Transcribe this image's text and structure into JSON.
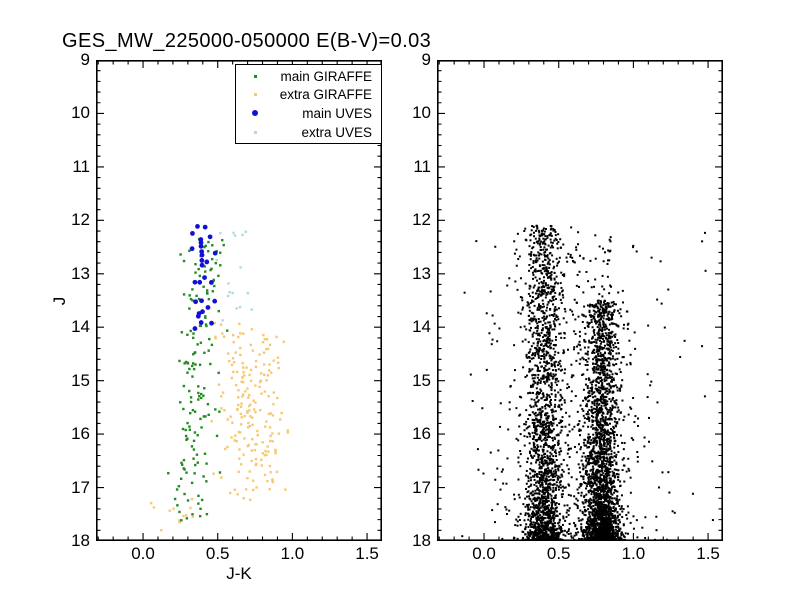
{
  "title": "GES_MW_225000-050000 E(B-V)=0.03",
  "axes": {
    "y_tick_labels": [
      "9",
      "10",
      "11",
      "12",
      "13",
      "14",
      "15",
      "16",
      "17",
      "18"
    ],
    "x_tick_labels": [
      "0.0",
      "0.5",
      "1.0",
      "1.5"
    ]
  },
  "colors": {
    "main_giraffe": "#228b22",
    "extra_giraffe": "#f7c873",
    "main_uves": "#1111d6",
    "extra_uves": "#aadce6",
    "field": "#000000",
    "frame": "#000000"
  },
  "chart_data": [
    {
      "type": "scatter",
      "panel": "left",
      "xlabel": "J-K",
      "ylabel": "J",
      "xlim": [
        -0.315,
        1.6
      ],
      "ylim": [
        18,
        9
      ],
      "y_inverted": true,
      "xticks": [
        0.0,
        0.5,
        1.0,
        1.5
      ],
      "yticks": [
        9,
        10,
        11,
        12,
        13,
        14,
        15,
        16,
        17,
        18
      ],
      "minor_tick_step_x": 0.1,
      "minor_tick_step_y": 0.2,
      "grid": false,
      "legend": {
        "position": "upper right",
        "entries": [
          "main GIRAFFE",
          "extra GIRAFFE",
          "main UVES",
          "extra UVES"
        ]
      },
      "series": [
        {
          "name": "extra GIRAFFE",
          "color": "#f7c873",
          "marker": "square",
          "size": 2.4,
          "clusters": [
            {
              "seed": 11,
              "count": 185,
              "x": {
                "dist": "normal",
                "mu": 0.74,
                "sigma": 0.105,
                "min": 0.44,
                "max": 0.97
              },
              "y": {
                "dist": "normal",
                "mu": 15.6,
                "sigma": 0.95,
                "min": 13.85,
                "max": 17.25
              }
            },
            {
              "seed": 12,
              "count": 12,
              "x": {
                "dist": "uniform",
                "min": 0.05,
                "max": 0.35
              },
              "y": {
                "dist": "uniform",
                "min": 17.2,
                "max": 17.8
              }
            },
            {
              "seed": 13,
              "count": 8,
              "x": {
                "dist": "normal",
                "mu": 0.56,
                "sigma": 0.06,
                "min": 0.46,
                "max": 0.7
              },
              "y": {
                "dist": "uniform",
                "min": 13.9,
                "max": 14.4
              }
            }
          ]
        },
        {
          "name": "main GIRAFFE",
          "color": "#228b22",
          "marker": "square",
          "size": 2.4,
          "clusters": [
            {
              "seed": 21,
              "count": 142,
              "slope": -0.015,
              "x": {
                "dist": "normal",
                "mu": 0.365,
                "sigma": 0.07,
                "min": 0.13,
                "max": 0.6
              },
              "y": {
                "dist": "uniform",
                "min": 12.45,
                "max": 17.65
              }
            },
            {
              "seed": 22,
              "count": 12,
              "x": {
                "dist": "normal",
                "mu": 0.46,
                "sigma": 0.05,
                "min": 0.36,
                "max": 0.58
              },
              "y": {
                "dist": "uniform",
                "min": 12.35,
                "max": 13.6
              }
            }
          ]
        },
        {
          "name": "extra UVES",
          "color": "#aadce6",
          "marker": "square",
          "size": 2.4,
          "clusters": [
            {
              "seed": 31,
              "count": 16,
              "x": {
                "dist": "normal",
                "mu": 0.6,
                "sigma": 0.11,
                "min": 0.4,
                "max": 0.8
              },
              "y": {
                "dist": "uniform",
                "min": 12.15,
                "max": 13.95
              }
            }
          ]
        },
        {
          "name": "main UVES",
          "color": "#1111d6",
          "marker": "circle",
          "size": 4.8,
          "clusters": [
            {
              "seed": 41,
              "count": 28,
              "x": {
                "dist": "normal",
                "mu": 0.405,
                "sigma": 0.045,
                "min": 0.29,
                "max": 0.5
              },
              "y": {
                "dist": "uniform",
                "min": 12.05,
                "max": 14.1
              }
            }
          ]
        }
      ]
    },
    {
      "type": "scatter",
      "panel": "right",
      "xlabel": "",
      "ylabel": "",
      "xlim": [
        -0.315,
        1.6
      ],
      "ylim": [
        18,
        9
      ],
      "y_inverted": true,
      "xticks": [
        0.0,
        0.5,
        1.0,
        1.5
      ],
      "yticks": [
        9,
        10,
        11,
        12,
        13,
        14,
        15,
        16,
        17,
        18
      ],
      "minor_tick_step_x": 0.1,
      "minor_tick_step_y": 0.2,
      "grid": false,
      "legend": null,
      "series": [
        {
          "name": "",
          "color": "#000000",
          "marker": "square",
          "size": 2.0,
          "clusters": [
            {
              "seed": 51,
              "count": 1900,
              "x": {
                "dist": "normal",
                "mu": 0.4,
                "sigma": 0.062,
                "min": 0.15,
                "max": 0.68
              },
              "y": {
                "dist": "powmax",
                "min": 12.1,
                "max": 18.0,
                "exp": 2.0
              }
            },
            {
              "seed": 52,
              "count": 2500,
              "x": {
                "dist": "normal",
                "mu": 0.79,
                "sigma": 0.058,
                "min": 0.55,
                "max": 1.05
              },
              "y": {
                "dist": "powmax",
                "min": 13.5,
                "max": 18.0,
                "exp": 2.2
              }
            },
            {
              "seed": 53,
              "count": 700,
              "x": {
                "dist": "normal",
                "mu": 0.6,
                "sigma": 0.24,
                "min": -0.25,
                "max": 1.5
              },
              "y": {
                "dist": "powmax",
                "min": 12.2,
                "max": 18.0,
                "exp": 1.5
              }
            },
            {
              "seed": 54,
              "count": 70,
              "x": {
                "dist": "uniform",
                "min": -0.15,
                "max": 1.55
              },
              "y": {
                "dist": "powmax",
                "min": 12.0,
                "max": 18.0,
                "exp": 1.2
              }
            }
          ]
        }
      ]
    }
  ]
}
